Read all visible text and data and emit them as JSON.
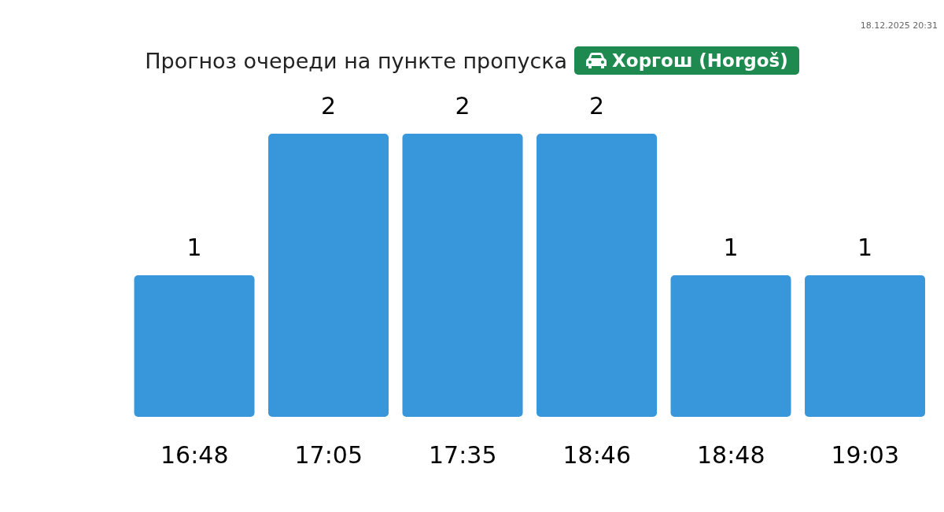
{
  "chart_data": {
    "type": "bar",
    "title": "Прогноз очереди на пункте пропуска",
    "subtitle": "Хоргош (Horgoš)",
    "annotations": [
      "18.12.2025 20:31"
    ],
    "categories": [
      "16:48",
      "17:05",
      "17:35",
      "18:46",
      "18:48",
      "19:03"
    ],
    "values": [
      1,
      2,
      2,
      2,
      1,
      1
    ],
    "color": "#3897db",
    "data_labels": true
  }
}
